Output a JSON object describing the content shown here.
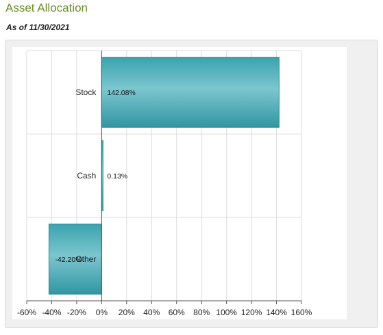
{
  "header": {
    "title": "Asset Allocation",
    "as_of": "As of 11/30/2021"
  },
  "chart_data": {
    "type": "bar",
    "orientation": "horizontal",
    "categories": [
      "Stock",
      "Cash",
      "Other"
    ],
    "values": [
      142.08,
      0.13,
      -42.2
    ],
    "value_labels": [
      "142.08%",
      "0.13%",
      "-42.20%"
    ],
    "xlim": [
      -60,
      160
    ],
    "xticks": [
      -60,
      -40,
      -20,
      0,
      20,
      40,
      60,
      80,
      100,
      120,
      140,
      160
    ],
    "xtick_labels": [
      "-60%",
      "-40%",
      "-20%",
      "0%",
      "20%",
      "40%",
      "60%",
      "80%",
      "100%",
      "120%",
      "140%",
      "160%"
    ],
    "grid": true,
    "colors": {
      "bar_fill": "#4fb3bf",
      "bar_stroke": "#2a8a96",
      "grid": "#dddddd",
      "axis": "#555555"
    }
  }
}
